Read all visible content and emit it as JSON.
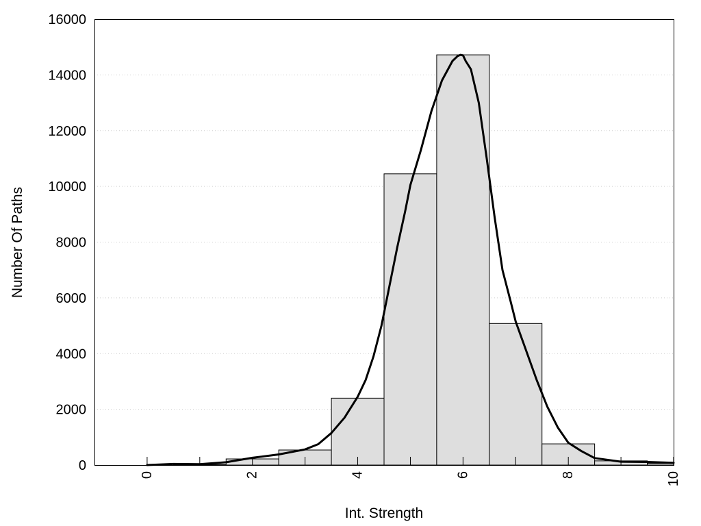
{
  "chart_data": {
    "type": "bar",
    "title": "",
    "xlabel": "Int. Strength",
    "ylabel": "Number Of Paths",
    "xlim": [
      -1,
      10
    ],
    "ylim": [
      0,
      16000
    ],
    "x_ticks": [
      "0",
      "2",
      "4",
      "6",
      "8",
      "10"
    ],
    "y_ticks": [
      "0",
      "2000",
      "4000",
      "6000",
      "8000",
      "10000",
      "12000",
      "14000",
      "16000"
    ],
    "grid": "horizontal dotted",
    "legend": "none",
    "bar_fill": "#dedede",
    "line_color": "#000000",
    "bins": [
      {
        "x": 0,
        "value": 0
      },
      {
        "x": 1,
        "value": 20
      },
      {
        "x": 2,
        "value": 220
      },
      {
        "x": 3,
        "value": 540
      },
      {
        "x": 4,
        "value": 2400
      },
      {
        "x": 5,
        "value": 10450
      },
      {
        "x": 6,
        "value": 14720
      },
      {
        "x": 7,
        "value": 5080
      },
      {
        "x": 8,
        "value": 760
      },
      {
        "x": 9,
        "value": 150
      },
      {
        "x": 10,
        "value": 60
      }
    ],
    "density_curve": {
      "x": [
        0,
        0.5,
        1,
        1.5,
        2,
        2.5,
        3,
        3.25,
        3.5,
        3.75,
        4,
        4.15,
        4.3,
        4.45,
        4.6,
        4.75,
        4.9,
        5,
        5.2,
        5.4,
        5.6,
        5.8,
        5.9,
        5.95,
        6,
        6.05,
        6.15,
        6.3,
        6.45,
        6.6,
        6.75,
        6.9,
        7,
        7.2,
        7.4,
        7.6,
        7.8,
        8,
        8.25,
        8.5,
        9,
        9.5,
        10
      ],
      "y": [
        0,
        40,
        30,
        100,
        260,
        380,
        560,
        750,
        1150,
        1700,
        2450,
        3050,
        3900,
        5000,
        6400,
        7800,
        9100,
        10050,
        11300,
        12700,
        13800,
        14500,
        14680,
        14720,
        14700,
        14500,
        14200,
        13000,
        11000,
        8900,
        7000,
        5900,
        5150,
        4100,
        3050,
        2100,
        1350,
        800,
        500,
        250,
        120,
        110,
        80
      ]
    }
  }
}
